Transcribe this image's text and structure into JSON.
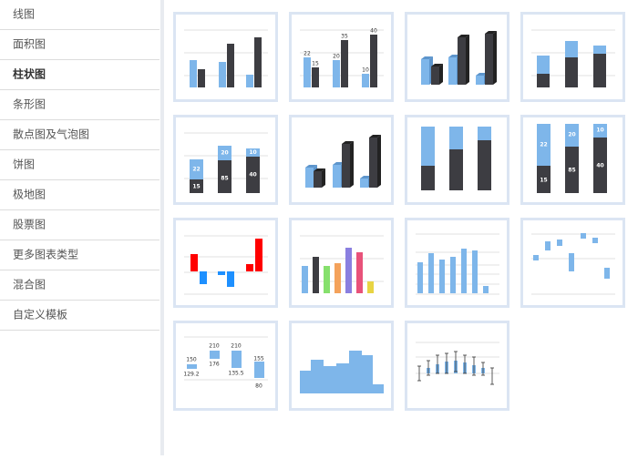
{
  "sidebar": {
    "items": [
      "线图",
      "面积图",
      "柱状图",
      "条形图",
      "散点图及气泡图",
      "饼图",
      "极地图",
      "股票图",
      "更多图表类型",
      "混合图",
      "自定义模板"
    ]
  },
  "gallery": [
    {
      "labels": [
        "22",
        "15",
        "20",
        "35",
        "10",
        "40"
      ]
    },
    {
      "labels": [
        "22",
        "15",
        "20",
        "85",
        "10",
        "40"
      ]
    },
    {
      "labels": [
        "22",
        "15",
        "20",
        "85",
        "10",
        "40"
      ]
    },
    {
      "labels": [
        "150",
        "129.2",
        "210",
        "176",
        "210",
        "135.5",
        "155",
        "80"
      ]
    }
  ]
}
